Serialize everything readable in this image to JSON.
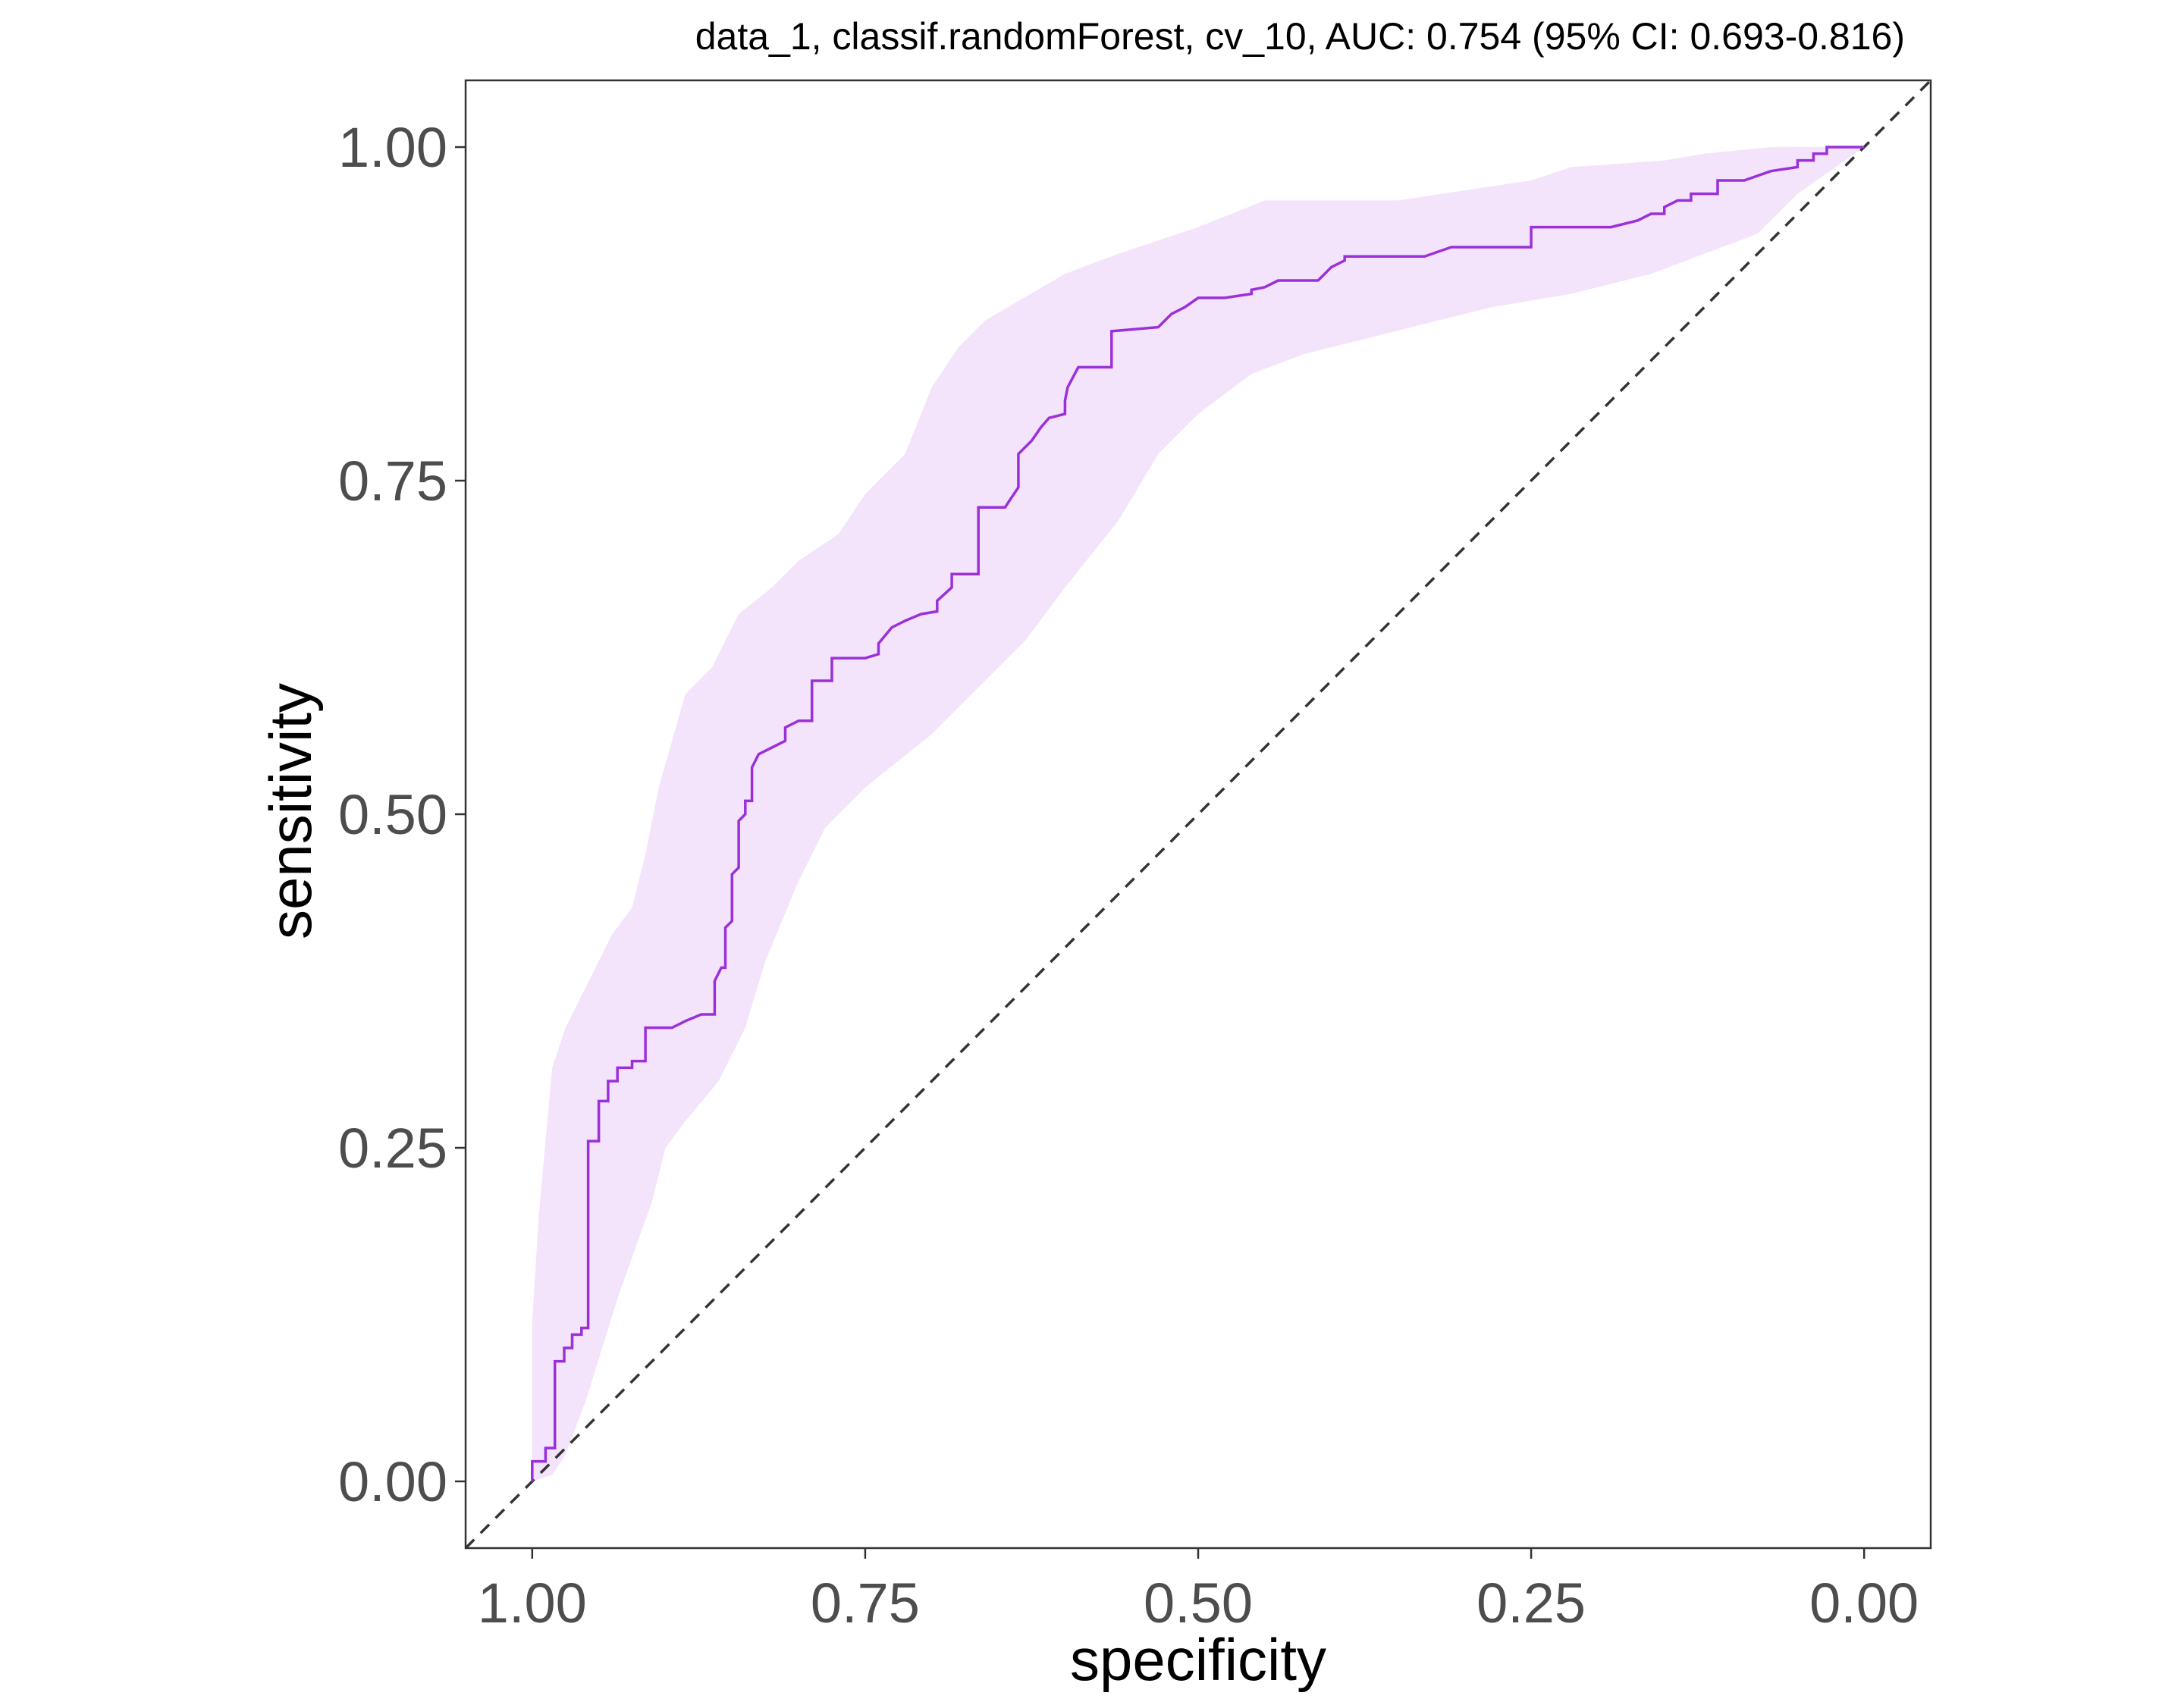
{
  "chart_data": {
    "type": "line",
    "title": "data_1, classif.randomForest, cv_10, AUC: 0.754 (95% CI: 0.693-0.816)",
    "xlabel": "specificity",
    "ylabel": "sensitivity",
    "x_reversed": true,
    "xlim": [
      1.05,
      -0.05
    ],
    "ylim": [
      -0.05,
      1.05
    ],
    "x_ticks": [
      1.0,
      0.75,
      0.5,
      0.25,
      0.0
    ],
    "x_tick_labels": [
      "1.00",
      "0.75",
      "0.50",
      "0.25",
      "0.00"
    ],
    "y_ticks": [
      0.0,
      0.25,
      0.5,
      0.75,
      1.0
    ],
    "y_tick_labels": [
      "0.00",
      "0.25",
      "0.50",
      "0.75",
      "1.00"
    ],
    "grid": false,
    "colors": {
      "roc_line": "#9b30d9",
      "ci_band": "#f3e3fb",
      "diagonal": "#333333",
      "frame": "#333333"
    },
    "reference_line": {
      "name": "chance diagonal",
      "style": "dashed",
      "points": [
        [
          1.05,
          -0.05
        ],
        [
          -0.05,
          1.05
        ]
      ]
    },
    "series": [
      {
        "name": "ROC curve",
        "kind": "step",
        "points": [
          [
            1.0,
            0.0
          ],
          [
            1.0,
            0.015
          ],
          [
            0.99,
            0.015
          ],
          [
            0.99,
            0.025
          ],
          [
            0.983,
            0.025
          ],
          [
            0.983,
            0.09
          ],
          [
            0.976,
            0.09
          ],
          [
            0.976,
            0.1
          ],
          [
            0.97,
            0.1
          ],
          [
            0.97,
            0.11
          ],
          [
            0.963,
            0.11
          ],
          [
            0.963,
            0.115
          ],
          [
            0.958,
            0.115
          ],
          [
            0.958,
            0.255
          ],
          [
            0.95,
            0.255
          ],
          [
            0.95,
            0.285
          ],
          [
            0.943,
            0.285
          ],
          [
            0.943,
            0.3
          ],
          [
            0.936,
            0.3
          ],
          [
            0.936,
            0.31
          ],
          [
            0.925,
            0.31
          ],
          [
            0.925,
            0.315
          ],
          [
            0.915,
            0.315
          ],
          [
            0.915,
            0.34
          ],
          [
            0.895,
            0.34
          ],
          [
            0.885,
            0.345
          ],
          [
            0.873,
            0.35
          ],
          [
            0.863,
            0.35
          ],
          [
            0.863,
            0.375
          ],
          [
            0.858,
            0.385
          ],
          [
            0.855,
            0.385
          ],
          [
            0.855,
            0.415
          ],
          [
            0.85,
            0.42
          ],
          [
            0.85,
            0.455
          ],
          [
            0.845,
            0.46
          ],
          [
            0.845,
            0.495
          ],
          [
            0.84,
            0.5
          ],
          [
            0.84,
            0.51
          ],
          [
            0.835,
            0.51
          ],
          [
            0.835,
            0.535
          ],
          [
            0.83,
            0.545
          ],
          [
            0.82,
            0.55
          ],
          [
            0.81,
            0.555
          ],
          [
            0.81,
            0.565
          ],
          [
            0.8,
            0.57
          ],
          [
            0.79,
            0.57
          ],
          [
            0.79,
            0.6
          ],
          [
            0.78,
            0.6
          ],
          [
            0.775,
            0.6
          ],
          [
            0.775,
            0.617
          ],
          [
            0.75,
            0.617
          ],
          [
            0.74,
            0.62
          ],
          [
            0.74,
            0.628
          ],
          [
            0.73,
            0.64
          ],
          [
            0.72,
            0.645
          ],
          [
            0.708,
            0.65
          ],
          [
            0.696,
            0.652
          ],
          [
            0.696,
            0.66
          ],
          [
            0.685,
            0.67
          ],
          [
            0.685,
            0.68
          ],
          [
            0.665,
            0.68
          ],
          [
            0.665,
            0.73
          ],
          [
            0.645,
            0.73
          ],
          [
            0.635,
            0.745
          ],
          [
            0.635,
            0.77
          ],
          [
            0.625,
            0.78
          ],
          [
            0.618,
            0.79
          ],
          [
            0.612,
            0.797
          ],
          [
            0.6,
            0.8
          ],
          [
            0.6,
            0.81
          ],
          [
            0.598,
            0.82
          ],
          [
            0.59,
            0.835
          ],
          [
            0.565,
            0.835
          ],
          [
            0.565,
            0.862
          ],
          [
            0.53,
            0.865
          ],
          [
            0.52,
            0.875
          ],
          [
            0.51,
            0.88
          ],
          [
            0.5,
            0.887
          ],
          [
            0.48,
            0.887
          ],
          [
            0.46,
            0.89
          ],
          [
            0.46,
            0.893
          ],
          [
            0.45,
            0.895
          ],
          [
            0.44,
            0.9
          ],
          [
            0.41,
            0.9
          ],
          [
            0.4,
            0.91
          ],
          [
            0.39,
            0.915
          ],
          [
            0.39,
            0.918
          ],
          [
            0.37,
            0.918
          ],
          [
            0.33,
            0.918
          ],
          [
            0.31,
            0.925
          ],
          [
            0.25,
            0.925
          ],
          [
            0.25,
            0.94
          ],
          [
            0.23,
            0.94
          ],
          [
            0.19,
            0.94
          ],
          [
            0.17,
            0.945
          ],
          [
            0.16,
            0.95
          ],
          [
            0.15,
            0.95
          ],
          [
            0.15,
            0.955
          ],
          [
            0.14,
            0.96
          ],
          [
            0.13,
            0.96
          ],
          [
            0.13,
            0.965
          ],
          [
            0.11,
            0.965
          ],
          [
            0.11,
            0.975
          ],
          [
            0.09,
            0.975
          ],
          [
            0.07,
            0.982
          ],
          [
            0.05,
            0.985
          ],
          [
            0.05,
            0.99
          ],
          [
            0.038,
            0.99
          ],
          [
            0.038,
            0.995
          ],
          [
            0.028,
            0.995
          ],
          [
            0.028,
            1.0
          ],
          [
            0.0,
            1.0
          ]
        ]
      }
    ],
    "ci_band": {
      "name": "95% CI band",
      "upper": [
        [
          1.0,
          0.12
        ],
        [
          0.995,
          0.2
        ],
        [
          0.985,
          0.31
        ],
        [
          0.975,
          0.34
        ],
        [
          0.96,
          0.37
        ],
        [
          0.94,
          0.41
        ],
        [
          0.925,
          0.43
        ],
        [
          0.915,
          0.47
        ],
        [
          0.905,
          0.52
        ],
        [
          0.885,
          0.59
        ],
        [
          0.865,
          0.61
        ],
        [
          0.845,
          0.65
        ],
        [
          0.82,
          0.67
        ],
        [
          0.8,
          0.69
        ],
        [
          0.77,
          0.71
        ],
        [
          0.75,
          0.74
        ],
        [
          0.72,
          0.77
        ],
        [
          0.7,
          0.82
        ],
        [
          0.68,
          0.85
        ],
        [
          0.66,
          0.87
        ],
        [
          0.6,
          0.905
        ],
        [
          0.56,
          0.92
        ],
        [
          0.5,
          0.94
        ],
        [
          0.45,
          0.96
        ],
        [
          0.35,
          0.96
        ],
        [
          0.25,
          0.975
        ],
        [
          0.22,
          0.985
        ],
        [
          0.15,
          0.99
        ],
        [
          0.12,
          0.995
        ],
        [
          0.07,
          1.0
        ],
        [
          0.0,
          1.0
        ]
      ],
      "lower": [
        [
          0.0,
          1.0
        ],
        [
          0.05,
          0.965
        ],
        [
          0.08,
          0.935
        ],
        [
          0.12,
          0.92
        ],
        [
          0.16,
          0.905
        ],
        [
          0.22,
          0.89
        ],
        [
          0.28,
          0.88
        ],
        [
          0.32,
          0.87
        ],
        [
          0.38,
          0.855
        ],
        [
          0.42,
          0.845
        ],
        [
          0.46,
          0.83
        ],
        [
          0.5,
          0.8
        ],
        [
          0.53,
          0.77
        ],
        [
          0.56,
          0.72
        ],
        [
          0.6,
          0.67
        ],
        [
          0.63,
          0.63
        ],
        [
          0.67,
          0.59
        ],
        [
          0.7,
          0.56
        ],
        [
          0.75,
          0.52
        ],
        [
          0.78,
          0.49
        ],
        [
          0.8,
          0.45
        ],
        [
          0.825,
          0.39
        ],
        [
          0.84,
          0.34
        ],
        [
          0.86,
          0.3
        ],
        [
          0.885,
          0.27
        ],
        [
          0.9,
          0.25
        ],
        [
          0.91,
          0.21
        ],
        [
          0.935,
          0.14
        ],
        [
          0.96,
          0.06
        ],
        [
          0.975,
          0.02
        ],
        [
          0.985,
          0.005
        ],
        [
          1.0,
          0.0
        ]
      ]
    }
  }
}
